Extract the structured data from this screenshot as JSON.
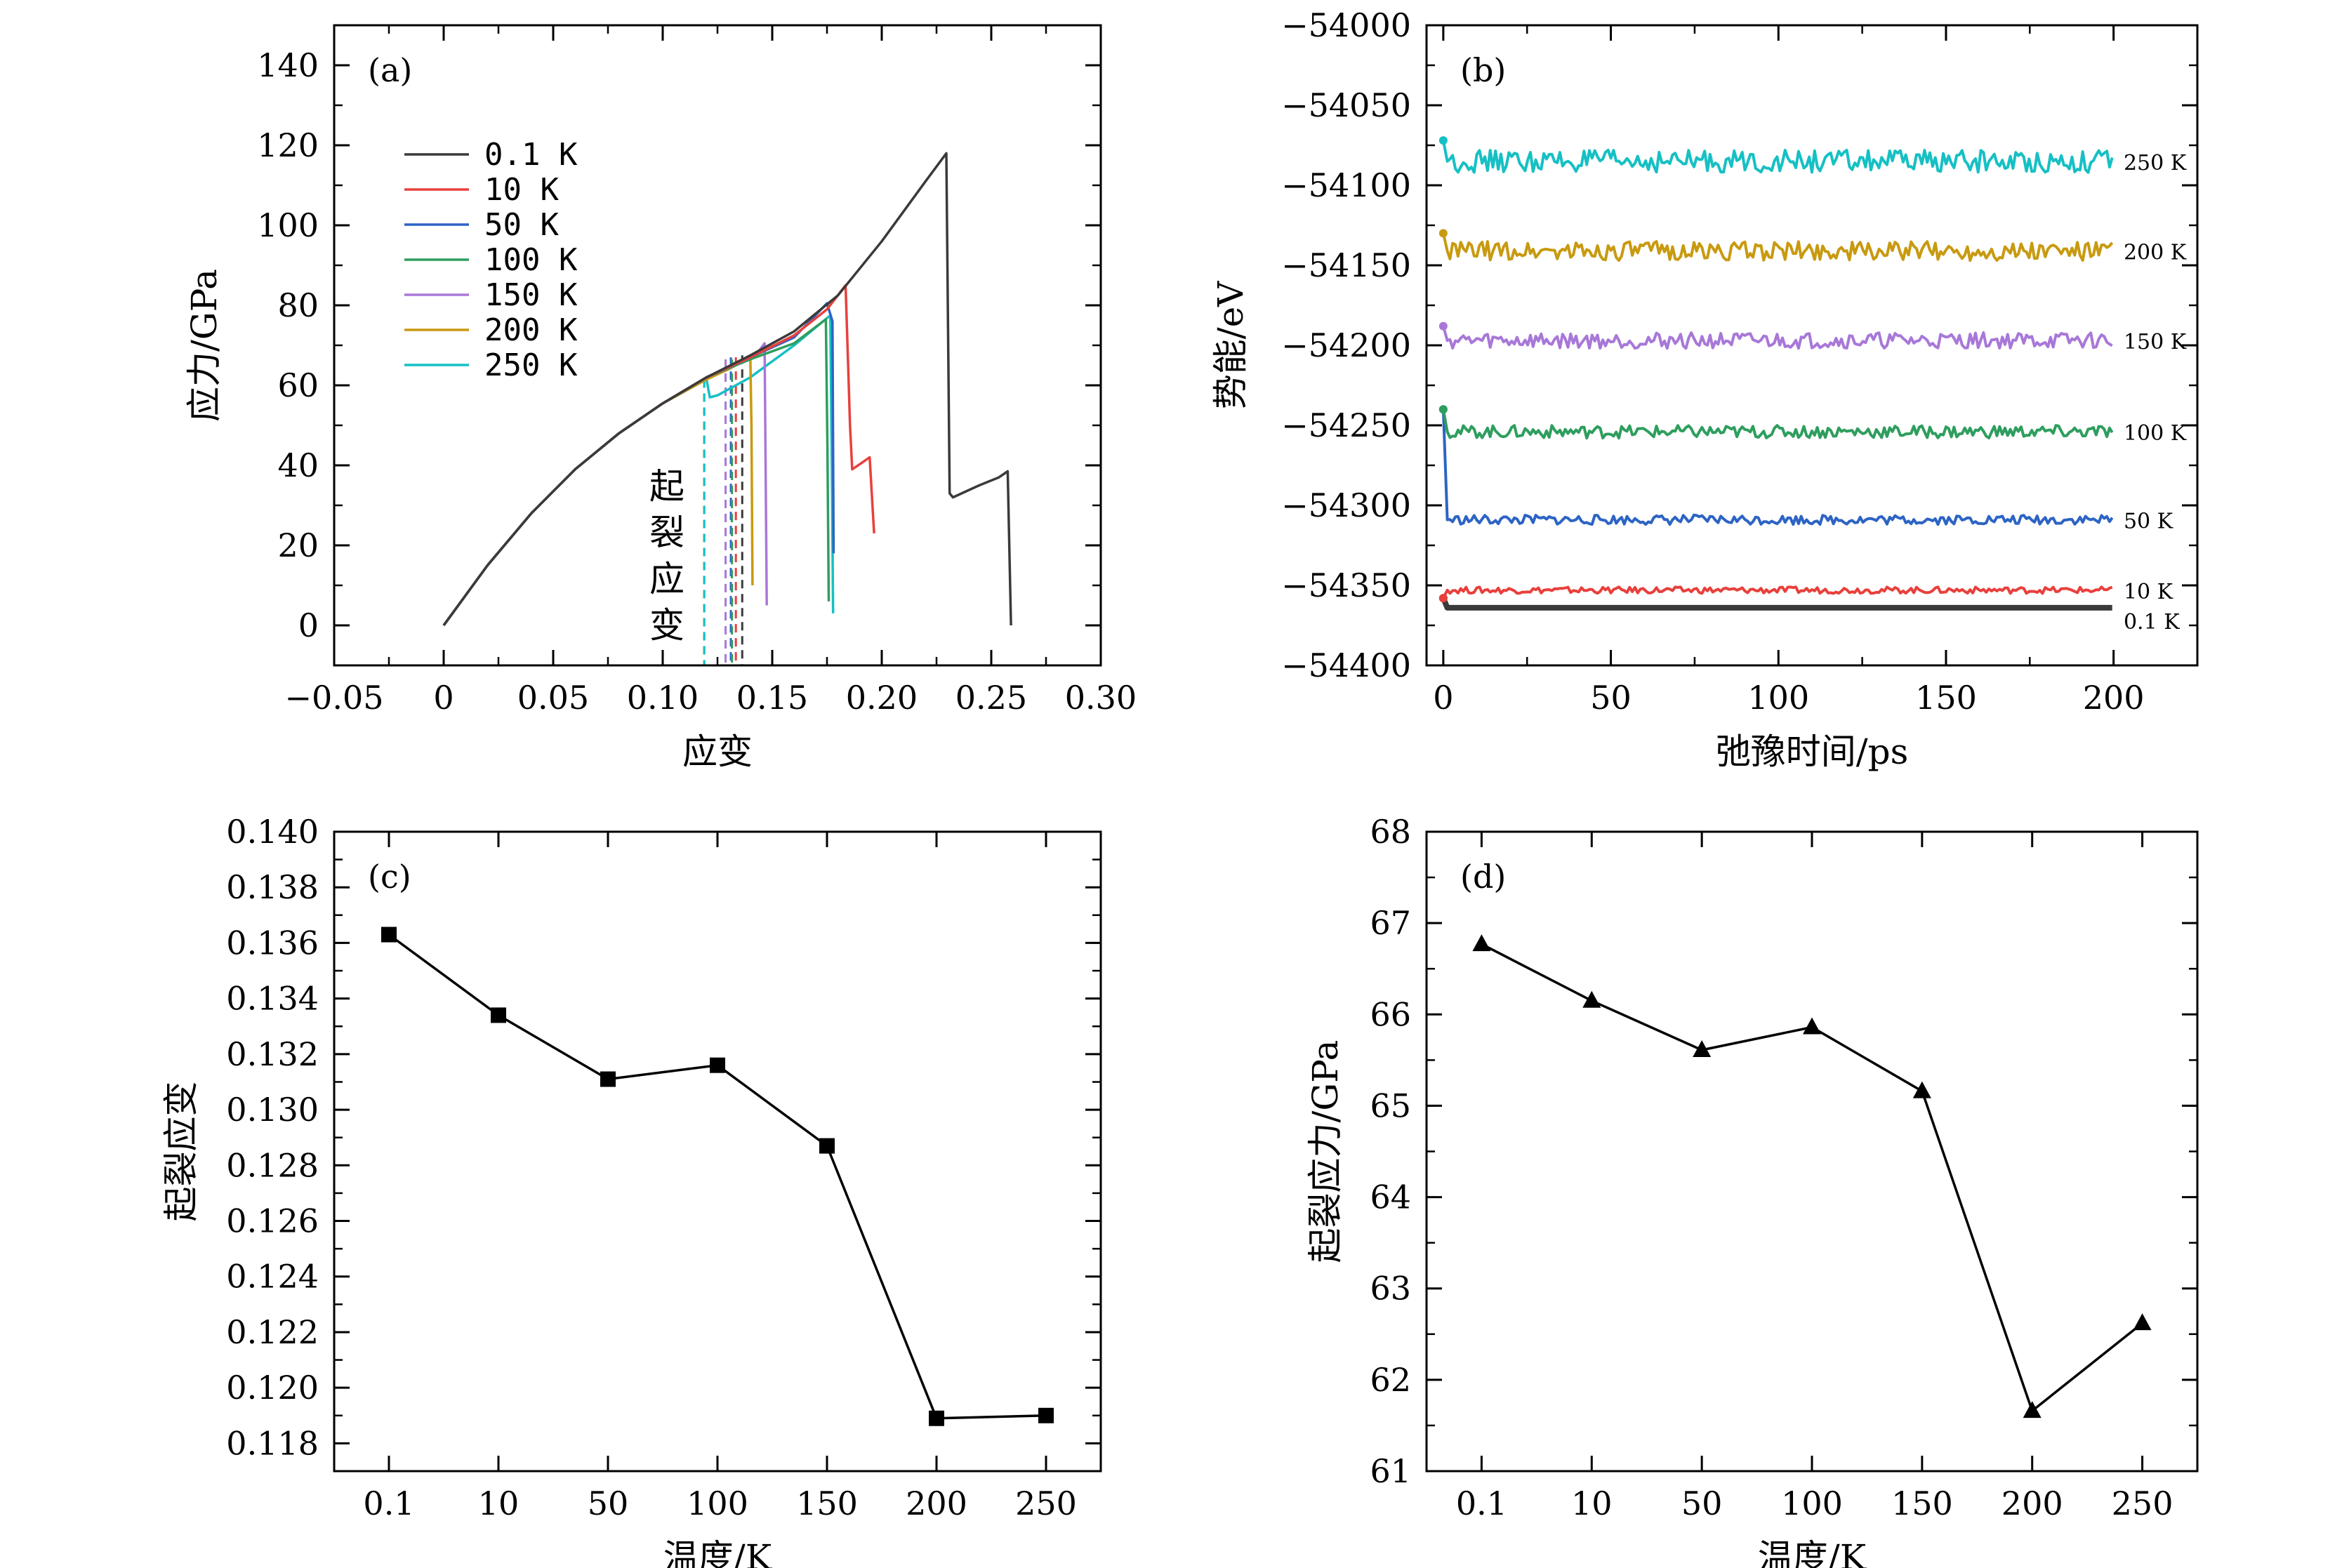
{
  "chart_data": [
    {
      "type": "line",
      "panel": "(a)",
      "xlabel": "应变",
      "ylabel": "应力/GPa",
      "xlim": [
        -0.05,
        0.3
      ],
      "ylim": [
        -10,
        150
      ],
      "xticks": [
        -0.05,
        0,
        0.05,
        0.1,
        0.15,
        0.2,
        0.25,
        0.3
      ],
      "xtick_labels": [
        "−0.05",
        "0",
        "0.05",
        "0.10",
        "0.15",
        "0.20",
        "0.25",
        "0.30"
      ],
      "yticks": [
        0,
        20,
        40,
        60,
        80,
        100,
        120,
        140
      ],
      "ytick_labels": [
        "0",
        "20",
        "40",
        "60",
        "80",
        "100",
        "120",
        "140"
      ],
      "annotation": [
        "起",
        "裂",
        "应",
        "变"
      ],
      "legend_position": "upper-left",
      "series": [
        {
          "name": "0.1 K",
          "color": "#3a3a3a",
          "crack_strain": 0.1363,
          "x": [
            0,
            0.02,
            0.04,
            0.06,
            0.08,
            0.1,
            0.12,
            0.14,
            0.16,
            0.18,
            0.2,
            0.22,
            0.2295,
            0.231,
            0.2325,
            0.2445,
            0.2535,
            0.2575,
            0.259
          ],
          "y": [
            0,
            15,
            28,
            39,
            48,
            55.5,
            62,
            67.5,
            73.5,
            82.5,
            96,
            111,
            118,
            33,
            32,
            35,
            37,
            38.5,
            0
          ]
        },
        {
          "name": "10 K",
          "color": "#e8403c",
          "crack_strain": 0.1334,
          "x": [
            0,
            0.02,
            0.04,
            0.06,
            0.08,
            0.1,
            0.12,
            0.14,
            0.16,
            0.175,
            0.1835,
            0.1855,
            0.1865,
            0.1905,
            0.1945,
            0.1965
          ],
          "y": [
            0,
            15,
            28,
            39,
            48,
            55.5,
            62,
            67,
            72.5,
            79,
            85,
            50,
            39,
            40.5,
            42,
            23
          ]
        },
        {
          "name": "50 K",
          "color": "#2d64c4",
          "crack_strain": 0.1311,
          "x": [
            0,
            0.02,
            0.04,
            0.06,
            0.08,
            0.1,
            0.12,
            0.14,
            0.16,
            0.175,
            0.1775,
            0.178
          ],
          "y": [
            0,
            15,
            28,
            39,
            48,
            55.5,
            62,
            67,
            72,
            80.5,
            76,
            18
          ]
        },
        {
          "name": "100 K",
          "color": "#2e9e5e",
          "crack_strain": 0.1316,
          "x": [
            0,
            0.02,
            0.04,
            0.06,
            0.08,
            0.1,
            0.12,
            0.14,
            0.16,
            0.1745,
            0.1752,
            0.1758
          ],
          "y": [
            0,
            15,
            28,
            39,
            48,
            55.5,
            62,
            66.5,
            70.5,
            76.5,
            45,
            6
          ]
        },
        {
          "name": "150 K",
          "color": "#a878d8",
          "crack_strain": 0.1287,
          "x": [
            0,
            0.02,
            0.04,
            0.06,
            0.08,
            0.1,
            0.12,
            0.14,
            0.1445,
            0.1465,
            0.1475
          ],
          "y": [
            0,
            15,
            28,
            39,
            48,
            55.5,
            62,
            66.5,
            69,
            70.5,
            5
          ]
        },
        {
          "name": "200 K",
          "color": "#c89a10",
          "crack_strain": 0.1189,
          "x": [
            0,
            0.02,
            0.04,
            0.06,
            0.08,
            0.1,
            0.12,
            0.13,
            0.14,
            0.1405,
            0.141
          ],
          "y": [
            0,
            15,
            28,
            39,
            48,
            55.5,
            61.5,
            64,
            67,
            50,
            10
          ]
        },
        {
          "name": "250 K",
          "color": "#16c0c4",
          "crack_strain": 0.119,
          "x": [
            0,
            0.02,
            0.04,
            0.06,
            0.08,
            0.1,
            0.12,
            0.1215,
            0.125,
            0.14,
            0.16,
            0.1765,
            0.1772,
            0.1778
          ],
          "y": [
            0,
            15,
            28,
            39,
            48,
            55.5,
            61.5,
            57,
            57.5,
            62,
            70,
            77.5,
            40,
            3
          ]
        }
      ]
    },
    {
      "type": "line",
      "panel": "(b)",
      "xlabel": "弛豫时间/ps",
      "ylabel": "势能/eV",
      "xlim": [
        -5,
        225
      ],
      "ylim": [
        -54400,
        -54000
      ],
      "xticks": [
        0,
        50,
        100,
        150,
        200
      ],
      "xtick_labels": [
        "0",
        "50",
        "100",
        "150",
        "200"
      ],
      "yticks": [
        -54000,
        -54050,
        -54100,
        -54150,
        -54200,
        -54250,
        -54300,
        -54350,
        -54400
      ],
      "ytick_labels": [
        "−54000",
        "−54050",
        "−54100",
        "−54150",
        "−54200",
        "−54250",
        "−54300",
        "−54350",
        "−54400"
      ],
      "series": [
        {
          "name": "0.1 K",
          "color": "#3a3a3a",
          "start": -54358,
          "level": -54364,
          "noise": 0
        },
        {
          "name": "10 K",
          "color": "#e8403c",
          "start": -54358,
          "level": -54353,
          "noise": 2
        },
        {
          "name": "50 K",
          "color": "#2d64c4",
          "start": -54240,
          "level": -54309,
          "noise": 3
        },
        {
          "name": "100 K",
          "color": "#2e9e5e",
          "start": -54240,
          "level": -54254,
          "noise": 4
        },
        {
          "name": "150 K",
          "color": "#a878d8",
          "start": -54188,
          "level": -54197,
          "noise": 5
        },
        {
          "name": "200 K",
          "color": "#c89a10",
          "start": -54130,
          "level": -54141,
          "noise": 6
        },
        {
          "name": "250 K",
          "color": "#16c0c4",
          "start": -54072,
          "level": -54085,
          "noise": 7
        }
      ]
    },
    {
      "type": "line",
      "panel": "(c)",
      "xlabel": "温度/K",
      "ylabel": "起裂应变",
      "categories": [
        "0.1",
        "10",
        "50",
        "100",
        "150",
        "200",
        "250"
      ],
      "values": [
        0.1363,
        0.1334,
        0.1311,
        0.1316,
        0.1287,
        0.1189,
        0.119
      ],
      "ylim": [
        0.117,
        0.14
      ],
      "yticks": [
        0.118,
        0.12,
        0.122,
        0.124,
        0.126,
        0.128,
        0.13,
        0.132,
        0.134,
        0.136,
        0.138,
        0.14
      ],
      "ytick_labels": [
        "0.118",
        "0.120",
        "0.122",
        "0.124",
        "0.126",
        "0.128",
        "0.130",
        "0.132",
        "0.134",
        "0.136",
        "0.138",
        "0.140"
      ],
      "marker": "square"
    },
    {
      "type": "line",
      "panel": "(d)",
      "xlabel": "温度/K",
      "ylabel": "起裂应力/GPa",
      "categories": [
        "0.1",
        "10",
        "50",
        "100",
        "150",
        "200",
        "250"
      ],
      "values": [
        66.77,
        66.15,
        65.61,
        65.86,
        65.16,
        61.66,
        62.62
      ],
      "ylim": [
        61,
        68
      ],
      "yticks": [
        61,
        62,
        63,
        64,
        65,
        66,
        67,
        68
      ],
      "ytick_labels": [
        "61",
        "62",
        "63",
        "64",
        "65",
        "66",
        "67",
        "68"
      ],
      "marker": "triangle"
    }
  ]
}
